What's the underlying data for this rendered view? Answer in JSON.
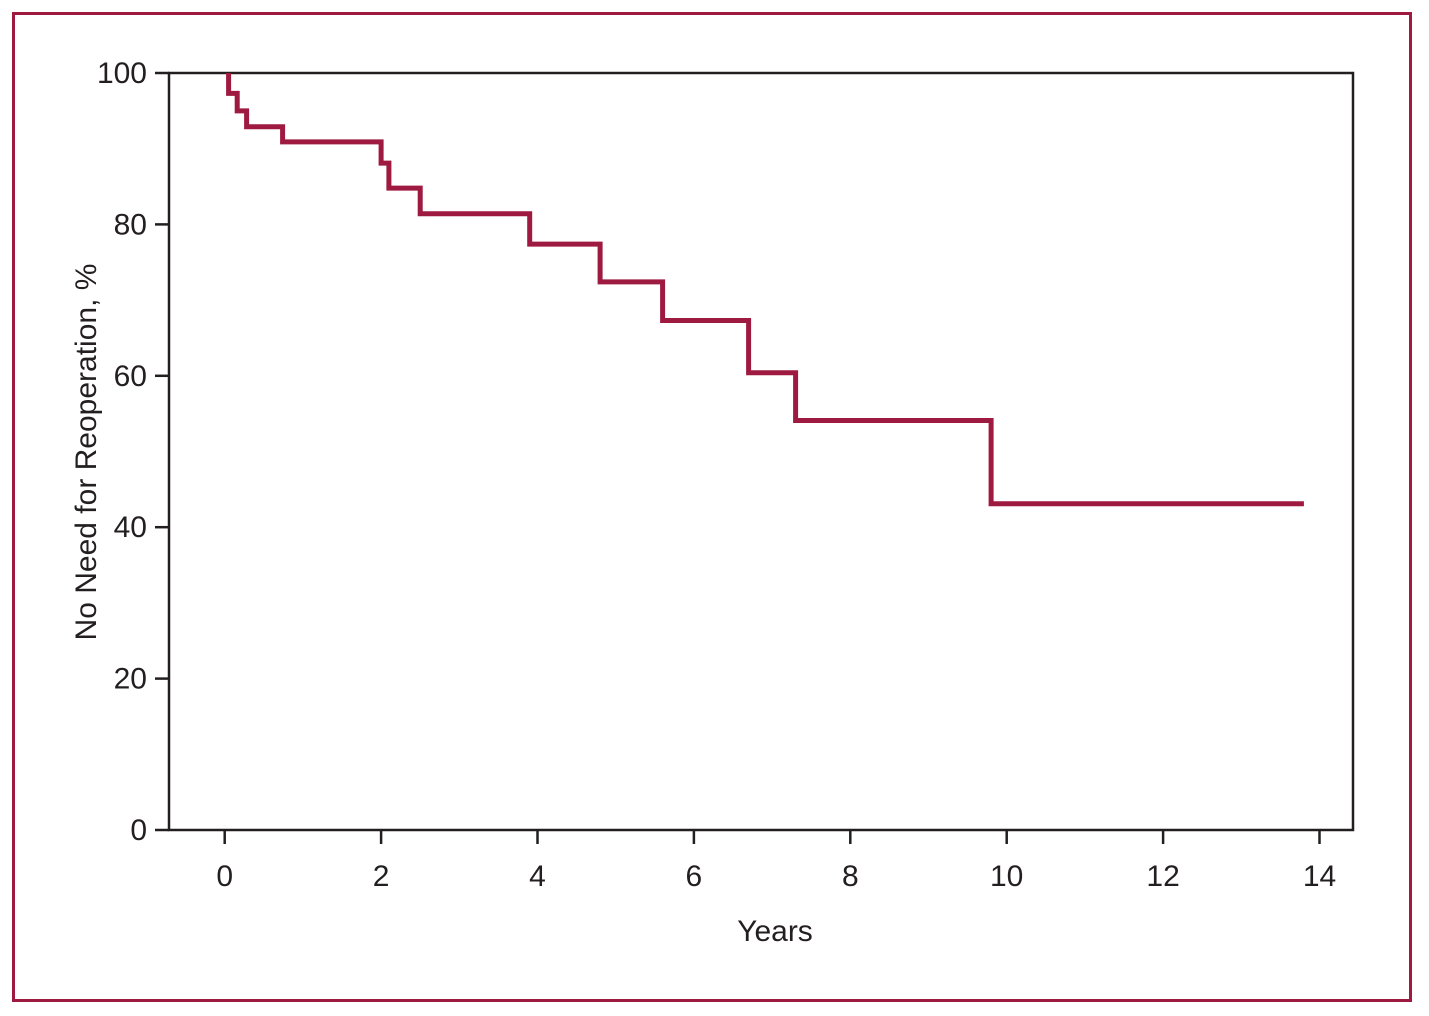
{
  "figure": {
    "background_color": "#ffffff",
    "border_color": "#9e1a40"
  },
  "chart_data": {
    "type": "line",
    "subtype": "kaplan-meier-step",
    "title": "",
    "xlabel": "Years",
    "ylabel": "No Need for Reoperation, %",
    "xticks": [
      0,
      2,
      4,
      6,
      8,
      10,
      12,
      14
    ],
    "yticks": [
      0,
      20,
      40,
      60,
      80,
      100
    ],
    "xlim": [
      0,
      14
    ],
    "ylim": [
      0,
      100
    ],
    "grid": false,
    "legend": "none",
    "line_color": "#9e1a40",
    "line_width": 5,
    "axis_color": "#231f20",
    "series": [
      {
        "name": "No Need for Reoperation",
        "step_points": [
          {
            "x": 0.05,
            "y": 100
          },
          {
            "x": 0.05,
            "y": 97.3
          },
          {
            "x": 0.16,
            "y": 97.3
          },
          {
            "x": 0.16,
            "y": 95.0
          },
          {
            "x": 0.28,
            "y": 95.0
          },
          {
            "x": 0.28,
            "y": 92.9
          },
          {
            "x": 0.74,
            "y": 92.9
          },
          {
            "x": 0.74,
            "y": 90.9
          },
          {
            "x": 2.0,
            "y": 90.9
          },
          {
            "x": 2.0,
            "y": 88.1
          },
          {
            "x": 2.1,
            "y": 88.1
          },
          {
            "x": 2.1,
            "y": 84.8
          },
          {
            "x": 2.5,
            "y": 84.8
          },
          {
            "x": 2.5,
            "y": 81.4
          },
          {
            "x": 3.9,
            "y": 81.4
          },
          {
            "x": 3.9,
            "y": 77.4
          },
          {
            "x": 4.8,
            "y": 77.4
          },
          {
            "x": 4.8,
            "y": 72.4
          },
          {
            "x": 5.6,
            "y": 72.4
          },
          {
            "x": 5.6,
            "y": 67.3
          },
          {
            "x": 6.7,
            "y": 67.3
          },
          {
            "x": 6.7,
            "y": 60.4
          },
          {
            "x": 7.3,
            "y": 60.4
          },
          {
            "x": 7.3,
            "y": 54.1
          },
          {
            "x": 9.8,
            "y": 54.1
          },
          {
            "x": 9.8,
            "y": 43.1
          },
          {
            "x": 13.8,
            "y": 43.1
          }
        ]
      }
    ]
  }
}
